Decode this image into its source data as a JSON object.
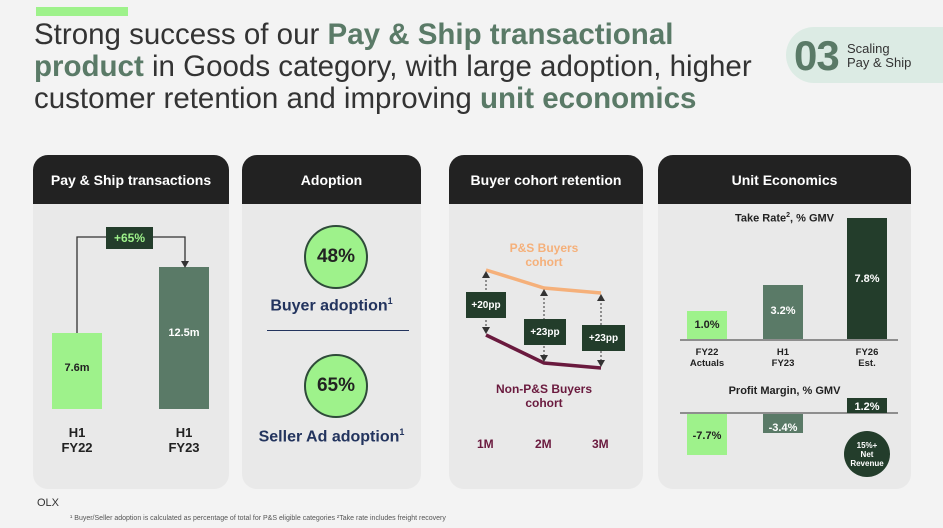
{
  "title": {
    "part1": "Strong success of our ",
    "highlight1": "Pay & Ship transactional product",
    "part2": " in Goods category, with large adoption, higher customer retention and improving ",
    "highlight2": "unit economics"
  },
  "section_badge": {
    "number": "03",
    "line1": "Scaling",
    "line2": "Pay & Ship"
  },
  "transactions": {
    "header": "Pay & Ship transactions",
    "growth_label": "+65%",
    "bars": [
      {
        "value": 7.6,
        "value_label": "7.6m",
        "period_line1": "H1",
        "period_line2": "FY22"
      },
      {
        "value": 12.5,
        "value_label": "12.5m",
        "period_line1": "H1",
        "period_line2": "FY23"
      }
    ]
  },
  "adoption": {
    "header": "Adoption",
    "buyer": {
      "value": "48%",
      "label": "Buyer adoption",
      "note": "1"
    },
    "seller": {
      "value": "65%",
      "label": "Seller Ad adoption",
      "note": "1"
    }
  },
  "retention": {
    "header": "Buyer cohort retention",
    "ps_label_line1": "P&S Buyers",
    "ps_label_line2": "cohort",
    "nonps_label_line1": "Non-P&S Buyers",
    "nonps_label_line2": "cohort",
    "months": [
      "1M",
      "2M",
      "3M"
    ],
    "gaps": [
      "+20pp",
      "+23pp",
      "+23pp"
    ],
    "colors": {
      "ps": "#f5b07a",
      "nonps": "#6a1a3e"
    }
  },
  "unit_economics": {
    "header": "Unit Economics",
    "take_rate": {
      "title": "Take Rate",
      "title_sup": "2",
      "title_suffix": ", % GMV",
      "bars": [
        {
          "value": 1.0,
          "label": "1.0%",
          "period_line1": "FY22",
          "period_line2": "Actuals"
        },
        {
          "value": 3.2,
          "label": "3.2%",
          "period_line1": "H1",
          "period_line2": "FY23"
        },
        {
          "value": 7.8,
          "label": "7.8%",
          "period_line1": "FY26",
          "period_line2": "Est."
        }
      ]
    },
    "profit_margin": {
      "title": "Profit Margin, % GMV",
      "bars": [
        {
          "value": -7.7,
          "label": "-7.7%"
        },
        {
          "value": -3.4,
          "label": "-3.4%"
        },
        {
          "value": 1.2,
          "label": "1.2%"
        }
      ],
      "net_revenue_line1": "15%+",
      "net_revenue_line2": "Net",
      "net_revenue_line3": "Revenue"
    }
  },
  "footer": {
    "brand": "OLX",
    "footnote": "¹ Buyer/Seller adoption is calculated as percentage of total for P&S eligible categories ²Take rate includes freight recovery"
  },
  "colors": {
    "accent_green": "#9ef28b",
    "mid_green": "#5a7a67",
    "dark_green": "#233d2b",
    "navy": "#23345e"
  }
}
